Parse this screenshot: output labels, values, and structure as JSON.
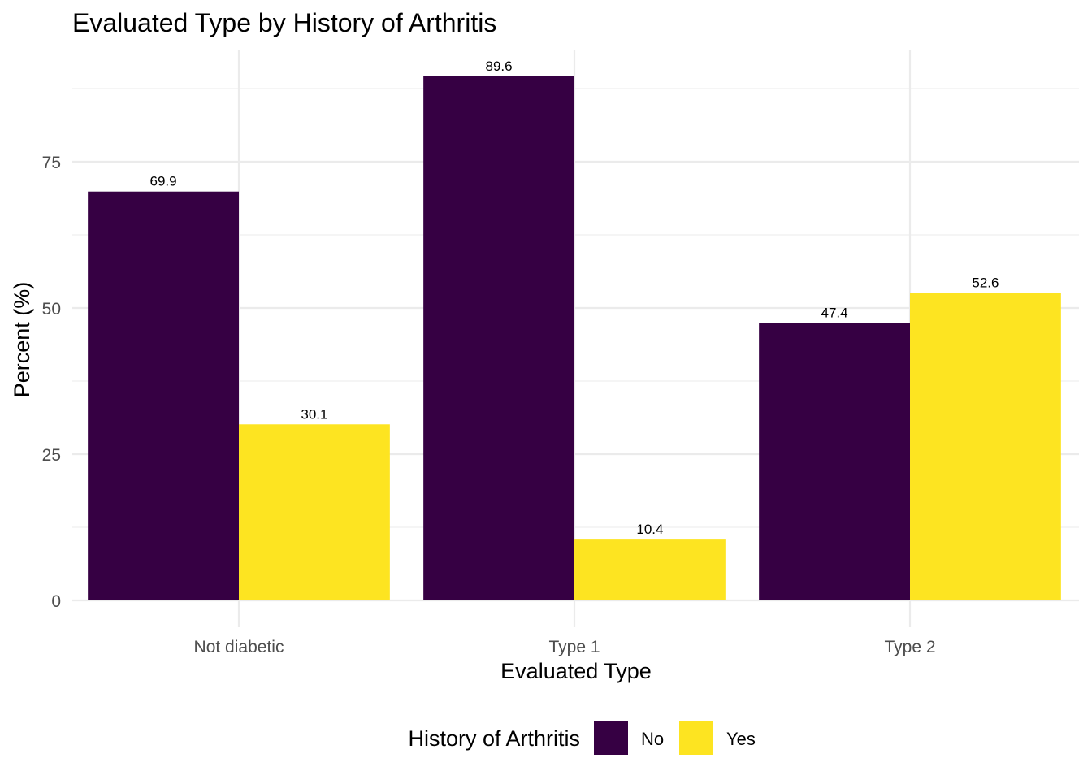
{
  "chart_data": {
    "type": "bar",
    "title": "Evaluated Type by History of Arthritis",
    "xlabel": "Evaluated Type",
    "ylabel": "Percent (%)",
    "categories": [
      "Not diabetic",
      "Type 1",
      "Type 2"
    ],
    "series": [
      {
        "name": "No",
        "values": [
          69.9,
          89.6,
          47.4
        ],
        "color": "#360043",
        "labels": [
          "69.9",
          "89.6",
          "47.4"
        ]
      },
      {
        "name": "Yes",
        "values": [
          30.1,
          10.4,
          52.6
        ],
        "color": "#FDE421",
        "labels": [
          "30.1",
          "10.4",
          "52.6"
        ]
      }
    ],
    "yticks": [
      0,
      25,
      50,
      75
    ],
    "ytick_labels": [
      "0",
      "25",
      "50",
      "75"
    ],
    "ylim": [
      0,
      94
    ],
    "grid": true,
    "legend": {
      "title": "History of Arthritis",
      "position": "bottom"
    }
  }
}
